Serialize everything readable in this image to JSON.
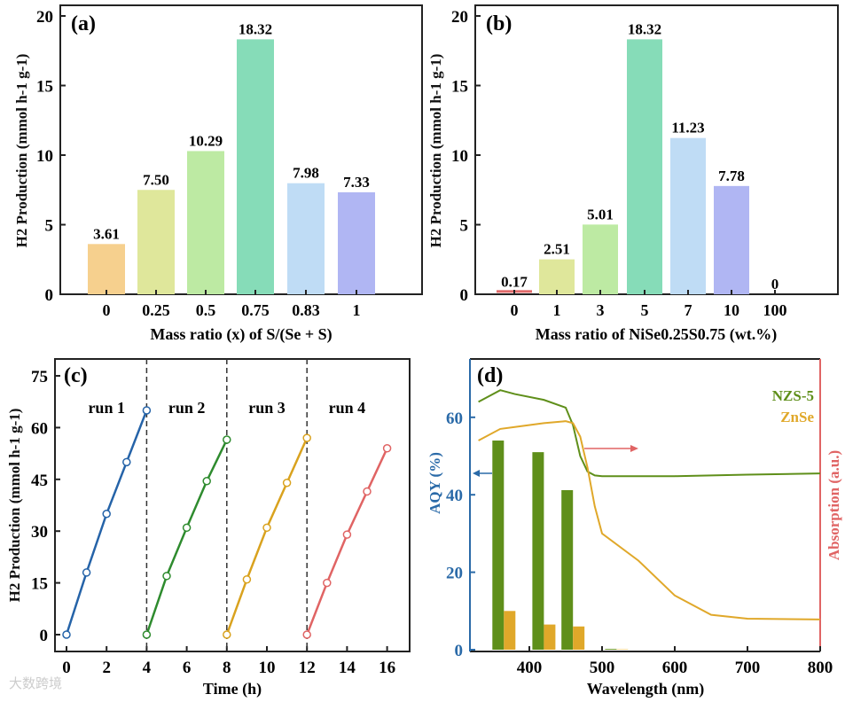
{
  "watermark": "大数跨境",
  "chart_data": [
    {
      "panel": "(a)",
      "type": "bar",
      "xlabel": "Mass ratio (x) of S/(Se + S)",
      "ylabel": "H2 Production (mmol h-1 g-1)",
      "ylim": [
        0,
        20
      ],
      "yticks": [
        0,
        5,
        10,
        15,
        20
      ],
      "categories": [
        "0",
        "0.25",
        "0.5",
        "0.75",
        "0.83",
        "1"
      ],
      "values": [
        3.61,
        7.5,
        10.29,
        18.32,
        7.98,
        7.33
      ],
      "labels": [
        "3.61",
        "7.50",
        "10.29",
        "18.32",
        "7.98",
        "7.33"
      ],
      "colors": [
        "#f6d08e",
        "#dfe79b",
        "#bdeaa3",
        "#86dcb8",
        "#bfdcf5",
        "#b0b6f3"
      ]
    },
    {
      "panel": "(b)",
      "type": "bar",
      "xlabel": "Mass ratio of NiSe0.25S0.75 (wt.%)",
      "ylabel": "H2 Production (mmol h-1 g-1)",
      "ylim": [
        0,
        20
      ],
      "yticks": [
        0,
        5,
        10,
        15,
        20
      ],
      "categories": [
        "0",
        "1",
        "3",
        "5",
        "7",
        "10",
        "100"
      ],
      "values": [
        0.17,
        2.51,
        5.01,
        18.32,
        11.23,
        7.78,
        0
      ],
      "labels": [
        "0.17",
        "2.51",
        "5.01",
        "18.32",
        "11.23",
        "7.78",
        "0"
      ],
      "colors": [
        "#e06a6a",
        "#dfe79b",
        "#bdeaa3",
        "#86dcb8",
        "#bfdcf5",
        "#b0b6f3",
        "#cccccc"
      ]
    },
    {
      "panel": "(c)",
      "type": "line",
      "xlabel": "Time (h)",
      "ylabel": "H2 Production (mmol h-1 g-1)",
      "xlim": [
        0,
        16
      ],
      "ylim": [
        0,
        75
      ],
      "xticks": [
        0,
        2,
        4,
        6,
        8,
        10,
        12,
        14,
        16
      ],
      "yticks": [
        0,
        15,
        30,
        45,
        60,
        75
      ],
      "series": [
        {
          "name": "run 1",
          "color": "#2563a8",
          "x": [
            0,
            1,
            2,
            3,
            4
          ],
          "y": [
            0,
            18,
            35,
            50,
            65
          ]
        },
        {
          "name": "run 2",
          "color": "#2e8b2e",
          "x": [
            4,
            5,
            6,
            7,
            8
          ],
          "y": [
            0,
            17,
            31,
            44.5,
            56.5
          ]
        },
        {
          "name": "run 3",
          "color": "#d9a21e",
          "x": [
            8,
            9,
            10,
            11,
            12
          ],
          "y": [
            0,
            16,
            31,
            44,
            57
          ]
        },
        {
          "name": "run 4",
          "color": "#e06464",
          "x": [
            12,
            13,
            14,
            15,
            16
          ],
          "y": [
            0,
            15,
            29,
            41.5,
            54
          ]
        }
      ],
      "dividers": [
        4,
        8,
        12
      ]
    },
    {
      "panel": "(d)",
      "type": "bar+line",
      "xlabel": "Wavelength (nm)",
      "ylabel": "AQY (%)",
      "ylabel_right": "Absorption (a.u.)",
      "xlim": [
        330,
        800
      ],
      "ylim": [
        0,
        70
      ],
      "xticks": [
        400,
        500,
        600,
        700,
        800
      ],
      "yticks": [
        0,
        20,
        40,
        60
      ],
      "legend": [
        {
          "name": "NZS-5",
          "color": "#5f8f1a"
        },
        {
          "name": "ZnSe",
          "color": "#e0a82a"
        }
      ],
      "bars": {
        "x": [
          365,
          420,
          460,
          520
        ],
        "NZS-5": [
          54,
          51,
          41.2,
          0.2
        ],
        "ZnSe": [
          10,
          6.5,
          6,
          0.1
        ]
      },
      "absorption": {
        "NZS-5": {
          "x": [
            330,
            360,
            380,
            420,
            450,
            460,
            470,
            480,
            490,
            500,
            600,
            700,
            800
          ],
          "y": [
            64,
            67,
            66,
            64.5,
            62.5,
            58,
            50,
            46,
            45,
            44.8,
            44.8,
            45.2,
            45.5
          ]
        },
        "ZnSe": {
          "x": [
            330,
            360,
            380,
            420,
            450,
            460,
            470,
            480,
            490,
            500,
            550,
            600,
            650,
            700,
            800
          ],
          "y": [
            54,
            57,
            57.5,
            58.5,
            59,
            58.5,
            55,
            47,
            37,
            30,
            23,
            14,
            9,
            8,
            7.8
          ]
        }
      }
    }
  ]
}
